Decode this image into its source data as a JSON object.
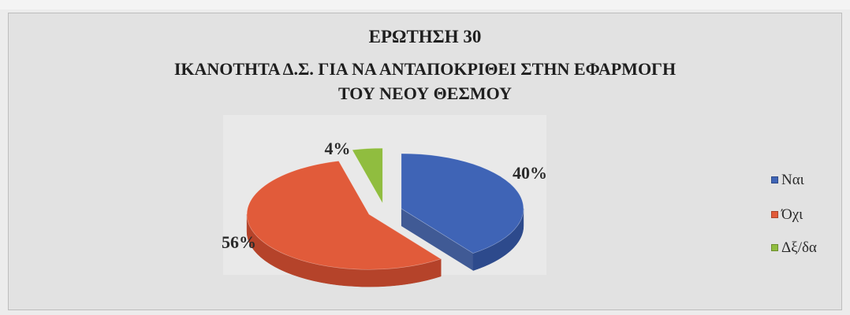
{
  "chart_data": {
    "type": "pie",
    "title": "ΕΡΩΤΗΣΗ 30",
    "subtitle_lines": [
      "ΙΚΑΝΟΤΗΤΑ Δ.Σ. ΓΙΑ ΝΑ ΑΝΤΑΠΟΚΡΙΘΕΙ ΣΤΗΝ ΕΦΑΡΜΟΓΗ",
      "ΤΟΥ ΝΕΟΥ ΘΕΣΜΟΥ"
    ],
    "three_d": true,
    "exploded": true,
    "legend_position": "right",
    "slices": [
      {
        "label": "Ναι",
        "value": 40,
        "display": "40%",
        "color": "#3f64b6",
        "side_color": "#2d4a8c"
      },
      {
        "label": "Όχι",
        "value": 56,
        "display": "56%",
        "color": "#e15b3a",
        "side_color": "#b5432a"
      },
      {
        "label": "Δξ/δα",
        "value": 4,
        "display": "4%",
        "color": "#90bd3f",
        "side_color": "#6e9430"
      }
    ]
  }
}
